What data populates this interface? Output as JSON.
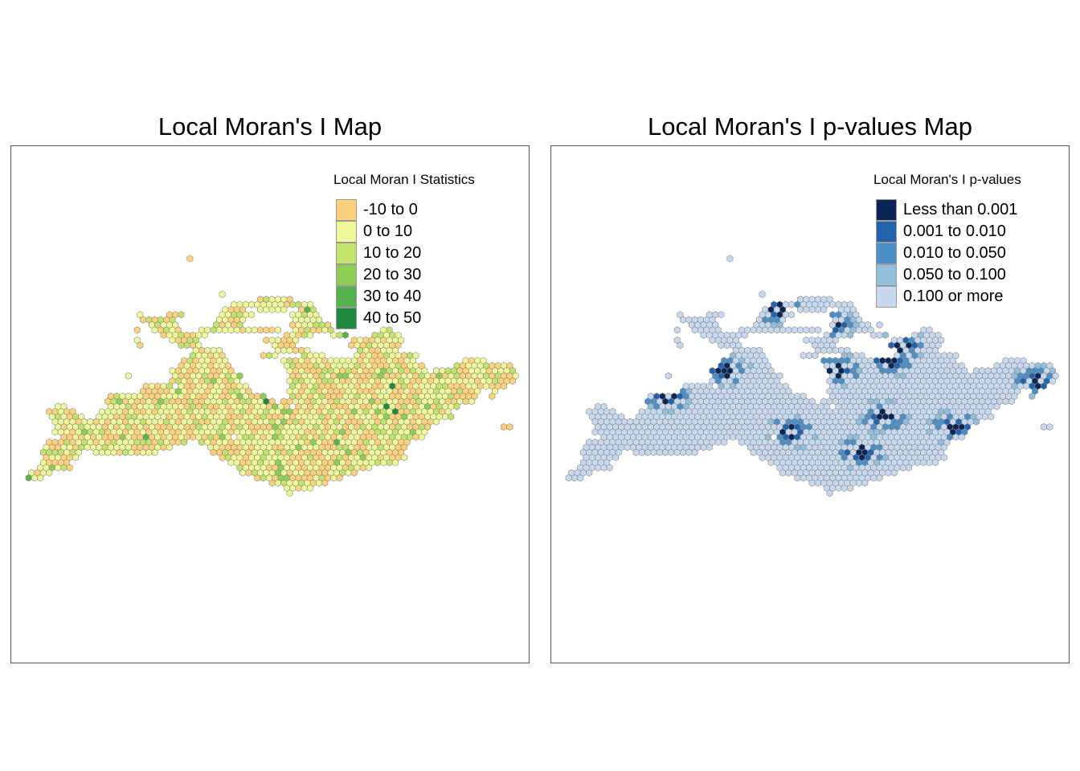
{
  "panels": [
    {
      "title": "Local Moran's I Map",
      "legend": {
        "title": "Local Moran I Statistics",
        "items": [
          {
            "label": "-10 to 0",
            "color": "#fdd27a"
          },
          {
            "label": "0 to 10",
            "color": "#eff99a"
          },
          {
            "label": "10 to 20",
            "color": "#c2e46c"
          },
          {
            "label": "20 to 30",
            "color": "#8fce55"
          },
          {
            "label": "30 to 40",
            "color": "#55b24f"
          },
          {
            "label": "40 to 50",
            "color": "#1f8a3f"
          }
        ]
      }
    },
    {
      "title": "Local Moran's I p-values Map",
      "legend": {
        "title": "Local Moran's I p-values",
        "items": [
          {
            "label": "Less than 0.001",
            "color": "#0b2557"
          },
          {
            "label": "0.001 to 0.010",
            "color": "#2163ad"
          },
          {
            "label": "0.010 to 0.050",
            "color": "#4b8fc6"
          },
          {
            "label": "0.050 to 0.100",
            "color": "#93bfdd"
          },
          {
            "label": "0.100 or more",
            "color": "#c6d9ee"
          }
        ]
      }
    }
  ]
}
